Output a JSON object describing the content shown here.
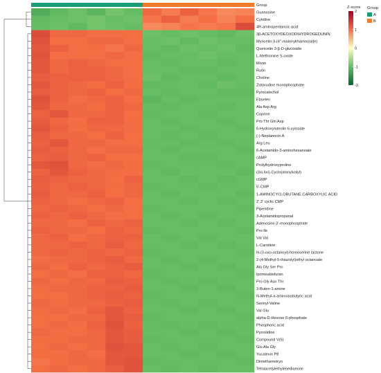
{
  "chart_data": {
    "type": "heatmap",
    "group_bar_label": "Group",
    "columns": [
      "A",
      "A",
      "A",
      "A",
      "A",
      "A",
      "B",
      "B",
      "B",
      "B",
      "B",
      "B"
    ],
    "rows": [
      "Guanosine",
      "Cytidine",
      "4R-aminopentanoic acid",
      "3β-ACETOXYDEOXODIHYDROGEDUNIN",
      "Myricetin 3-(4''-malonylrhamnoside)",
      "Quercetin 3-β-D-glucoside",
      "L-Methionine S-oxide",
      "Morin",
      "Rutin",
      "Choline",
      "Zidovudine monophosphate",
      "Pyrocatechol",
      "Ebselen",
      "Ala Asp Arg",
      "Coprine",
      "Pro Thr Gln Asp",
      "6-Hydroxyluteolin 6-xyloside",
      "(-)-Neplanocin A",
      "Arg Leu",
      "6-Acetamido-3-aminohexanoate",
      "cAMP",
      "Prolylhydroxyproline",
      "(3xi,6xi)-Cyclo(alanylvalyl)",
      "cGMP",
      "5'-CMP",
      "1-AMINOCYCLOBUTANE CARBOXYLIC ACID",
      "2',3' cyclic CMP",
      "Piperidine",
      "3-Acetamidopropanal",
      "Adenosine 3'-monophosphate",
      "Pro Ile",
      "Val Val",
      "L-Carnitine",
      "N-(3-oxo-octanoyl)-homoserine lactone",
      "2-(4-Methyl-5-thiazolyl)ethyl octanoate",
      "Ala Gly Ser Pro",
      "Ipomeabisfuran",
      "Pro Gly Asn Thr",
      "3-Buten-1-amine",
      "N-Methyl-a-aminoisobutyric acid",
      "Serinyl-Valine",
      "Val Glu",
      "alpha-D-Hexose 6-phosphate",
      "Phosphoric acid",
      "Pyrrolidine",
      "Compound V(5)",
      "Glu Ala Gly",
      "Yucalexin P8",
      "Dimethametryn",
      "Tetraacetylethylenediamine"
    ],
    "values": [
      [
        -1.2,
        -1.05,
        -0.95,
        -1.1,
        -0.9,
        -1.0,
        1.05,
        0.9,
        1.1,
        0.95,
        0.8,
        0.85
      ],
      [
        -1.05,
        -1.0,
        -0.95,
        -0.9,
        -1.0,
        -0.95,
        0.95,
        1.1,
        0.9,
        1.0,
        0.85,
        1.0
      ],
      [
        -1.0,
        -0.95,
        -1.05,
        -0.9,
        -0.95,
        -1.0,
        0.8,
        0.85,
        0.95,
        0.9,
        0.95,
        1.3
      ],
      [
        1.3,
        1.05,
        1.05,
        1.0,
        1.0,
        1.0,
        -0.95,
        -1.0,
        -0.95,
        -1.0,
        -1.05,
        -0.95
      ],
      [
        1.25,
        1.0,
        1.0,
        1.05,
        1.05,
        1.0,
        -1.0,
        -0.95,
        -1.05,
        -0.95,
        -1.0,
        -1.0
      ],
      [
        1.2,
        1.1,
        1.0,
        1.0,
        0.95,
        1.05,
        -1.0,
        -1.05,
        -0.95,
        -1.0,
        -0.95,
        -1.05
      ],
      [
        1.25,
        1.0,
        1.0,
        1.0,
        1.05,
        1.0,
        -1.05,
        -1.0,
        -1.0,
        -0.95,
        -1.0,
        -1.0
      ],
      [
        1.2,
        1.05,
        1.1,
        1.05,
        1.0,
        1.0,
        -1.0,
        -1.05,
        -1.0,
        -1.0,
        -1.05,
        -1.0
      ],
      [
        1.2,
        1.05,
        1.1,
        1.1,
        1.05,
        1.0,
        -1.0,
        -1.0,
        -1.05,
        -1.05,
        -1.0,
        -1.0
      ],
      [
        1.15,
        1.1,
        1.1,
        1.1,
        1.05,
        1.0,
        -0.95,
        -1.05,
        -1.0,
        -1.0,
        -1.05,
        -1.0
      ],
      [
        1.2,
        1.1,
        1.05,
        1.0,
        1.1,
        1.0,
        -1.05,
        -1.0,
        -1.0,
        -1.05,
        -0.95,
        -1.0
      ],
      [
        1.15,
        1.1,
        1.05,
        1.1,
        1.0,
        1.05,
        -1.0,
        -1.05,
        -1.0,
        -1.0,
        -1.05,
        -1.05
      ],
      [
        1.25,
        1.1,
        1.0,
        1.05,
        1.1,
        1.0,
        -1.1,
        -1.0,
        -1.05,
        -1.0,
        -1.0,
        -1.0
      ],
      [
        1.2,
        1.05,
        1.05,
        1.0,
        1.1,
        1.05,
        -1.0,
        -1.05,
        -1.0,
        -1.0,
        -1.05,
        -1.0
      ],
      [
        1.1,
        1.2,
        1.05,
        1.05,
        1.1,
        1.0,
        -1.05,
        -1.0,
        -1.0,
        -1.05,
        -1.0,
        -1.0
      ],
      [
        1.15,
        1.05,
        1.0,
        1.1,
        1.1,
        1.0,
        -1.0,
        -1.05,
        -1.0,
        -1.0,
        -1.05,
        -1.0
      ],
      [
        1.2,
        1.1,
        1.0,
        1.05,
        1.05,
        1.0,
        -1.0,
        -1.0,
        -1.05,
        -1.0,
        -1.0,
        -1.05
      ],
      [
        1.15,
        1.05,
        1.05,
        1.0,
        1.1,
        1.0,
        -1.0,
        -1.05,
        -1.0,
        -1.05,
        -1.0,
        -1.0
      ],
      [
        1.1,
        1.2,
        1.05,
        1.05,
        1.0,
        1.0,
        -1.0,
        -1.0,
        -1.05,
        -1.0,
        -1.05,
        -1.0
      ],
      [
        1.15,
        1.1,
        1.05,
        1.0,
        1.05,
        1.05,
        -1.0,
        -1.05,
        -1.0,
        -1.0,
        -1.0,
        -1.05
      ],
      [
        1.1,
        1.15,
        1.05,
        1.1,
        1.0,
        1.0,
        -1.0,
        -1.0,
        -1.05,
        -1.05,
        -1.0,
        -1.0
      ],
      [
        1.2,
        1.25,
        1.05,
        1.0,
        1.05,
        1.0,
        -1.05,
        -1.0,
        -1.0,
        -1.0,
        -1.05,
        -1.0
      ],
      [
        1.1,
        1.2,
        1.1,
        1.05,
        1.0,
        1.0,
        -1.0,
        -1.05,
        -1.0,
        -1.0,
        -1.0,
        -1.05
      ],
      [
        1.15,
        1.1,
        1.05,
        1.05,
        1.0,
        1.1,
        -1.0,
        -1.0,
        -1.05,
        -1.0,
        -1.05,
        -1.0
      ],
      [
        1.1,
        1.05,
        1.1,
        1.05,
        1.0,
        1.05,
        -1.05,
        -1.0,
        -1.0,
        -1.05,
        -1.0,
        -1.0
      ],
      [
        1.15,
        1.05,
        1.05,
        1.1,
        1.0,
        1.05,
        -1.0,
        -1.05,
        -1.0,
        -1.0,
        -1.0,
        -1.05
      ],
      [
        1.1,
        1.05,
        1.0,
        1.05,
        1.1,
        1.0,
        -1.0,
        -1.0,
        -1.05,
        -1.0,
        -1.05,
        -1.0
      ],
      [
        1.05,
        1.1,
        1.05,
        1.0,
        1.05,
        1.0,
        -1.05,
        -1.0,
        -1.0,
        -1.0,
        -1.0,
        -1.05
      ],
      [
        1.1,
        1.05,
        1.1,
        1.05,
        1.0,
        1.0,
        -1.0,
        -1.05,
        -1.0,
        -1.05,
        -1.0,
        -1.0
      ],
      [
        1.05,
        1.05,
        1.0,
        1.1,
        1.05,
        1.1,
        -1.0,
        -1.0,
        -1.05,
        -1.0,
        -1.05,
        -1.0
      ],
      [
        1.1,
        1.05,
        1.05,
        1.0,
        1.1,
        1.05,
        -1.05,
        -1.0,
        -1.0,
        -1.0,
        -1.0,
        -1.05
      ],
      [
        1.05,
        1.1,
        1.0,
        1.05,
        1.1,
        1.1,
        -1.0,
        -1.05,
        -1.0,
        -1.05,
        -1.0,
        -1.0
      ],
      [
        1.05,
        1.05,
        1.1,
        1.05,
        1.15,
        1.05,
        -1.0,
        -1.0,
        -1.05,
        -1.0,
        -1.05,
        -1.0
      ],
      [
        1.05,
        1.1,
        1.05,
        1.1,
        1.05,
        1.1,
        -1.05,
        -1.0,
        -1.0,
        -1.0,
        -1.0,
        -1.05
      ],
      [
        1.0,
        1.05,
        1.05,
        1.1,
        1.15,
        1.05,
        -1.0,
        -1.05,
        -1.0,
        -1.05,
        -1.0,
        -1.0
      ],
      [
        1.05,
        1.0,
        1.1,
        1.05,
        1.1,
        1.15,
        -1.0,
        -1.0,
        -1.05,
        -1.0,
        -1.05,
        -1.0
      ],
      [
        1.0,
        1.05,
        1.0,
        1.1,
        1.1,
        1.05,
        -1.05,
        -1.0,
        -1.0,
        -1.0,
        -1.0,
        -1.05
      ],
      [
        1.05,
        1.0,
        1.05,
        1.05,
        1.15,
        1.1,
        -1.0,
        -1.05,
        -1.0,
        -1.05,
        -1.0,
        -1.0
      ],
      [
        1.0,
        1.05,
        1.05,
        1.1,
        1.1,
        1.15,
        -1.0,
        -1.0,
        -1.05,
        -1.0,
        -1.05,
        -1.0
      ],
      [
        1.0,
        1.0,
        1.05,
        1.1,
        1.15,
        1.1,
        -1.05,
        -1.0,
        -1.0,
        -1.0,
        -1.0,
        -1.05
      ],
      [
        1.05,
        1.0,
        1.05,
        1.05,
        1.1,
        1.15,
        -1.0,
        -1.05,
        -1.0,
        -1.05,
        -1.0,
        -1.0
      ],
      [
        1.0,
        1.05,
        1.0,
        1.1,
        1.2,
        1.1,
        -1.0,
        -1.0,
        -1.05,
        -1.0,
        -1.05,
        -1.0
      ],
      [
        1.0,
        1.0,
        1.05,
        1.05,
        1.2,
        1.15,
        -1.05,
        -1.0,
        -1.0,
        -1.0,
        -1.0,
        -1.05
      ],
      [
        1.0,
        1.05,
        1.0,
        1.1,
        1.25,
        1.1,
        -1.0,
        -1.05,
        -1.0,
        -1.05,
        -1.0,
        -1.0
      ],
      [
        1.05,
        1.0,
        1.0,
        1.05,
        1.2,
        1.15,
        -1.0,
        -1.0,
        -1.05,
        -1.0,
        -1.05,
        -1.0
      ],
      [
        1.0,
        1.0,
        1.05,
        1.05,
        1.2,
        1.15,
        -1.05,
        -1.0,
        -1.0,
        -1.0,
        -1.0,
        -1.05
      ],
      [
        1.0,
        1.05,
        1.0,
        1.05,
        1.25,
        1.2,
        -1.0,
        -1.05,
        -1.0,
        -1.05,
        -1.0,
        -1.0
      ],
      [
        1.0,
        1.0,
        1.05,
        1.0,
        1.2,
        1.2,
        -1.0,
        -1.0,
        -1.05,
        -1.0,
        -1.05,
        -1.0
      ],
      [
        0.95,
        1.0,
        1.05,
        1.05,
        1.2,
        1.25,
        -1.05,
        -1.0,
        -1.0,
        -1.0,
        -1.0,
        -1.05
      ],
      [
        1.0,
        1.05,
        1.0,
        1.05,
        1.15,
        1.25,
        -1.0,
        -1.05,
        -1.0,
        -1.05,
        -1.0,
        -1.0
      ]
    ],
    "colorbar": {
      "title": "Z-score",
      "ticks": [
        "2",
        "1",
        "0",
        "-1",
        "-2"
      ],
      "range": [
        -2,
        2
      ],
      "colors": [
        "#006837",
        "#66bd63",
        "#ffffbf",
        "#f46d43",
        "#a50026"
      ]
    },
    "group_legend": {
      "title": "Group",
      "items": [
        {
          "label": "A",
          "color": "#1b9e77"
        },
        {
          "label": "B",
          "color": "#f07b2b"
        }
      ]
    }
  }
}
